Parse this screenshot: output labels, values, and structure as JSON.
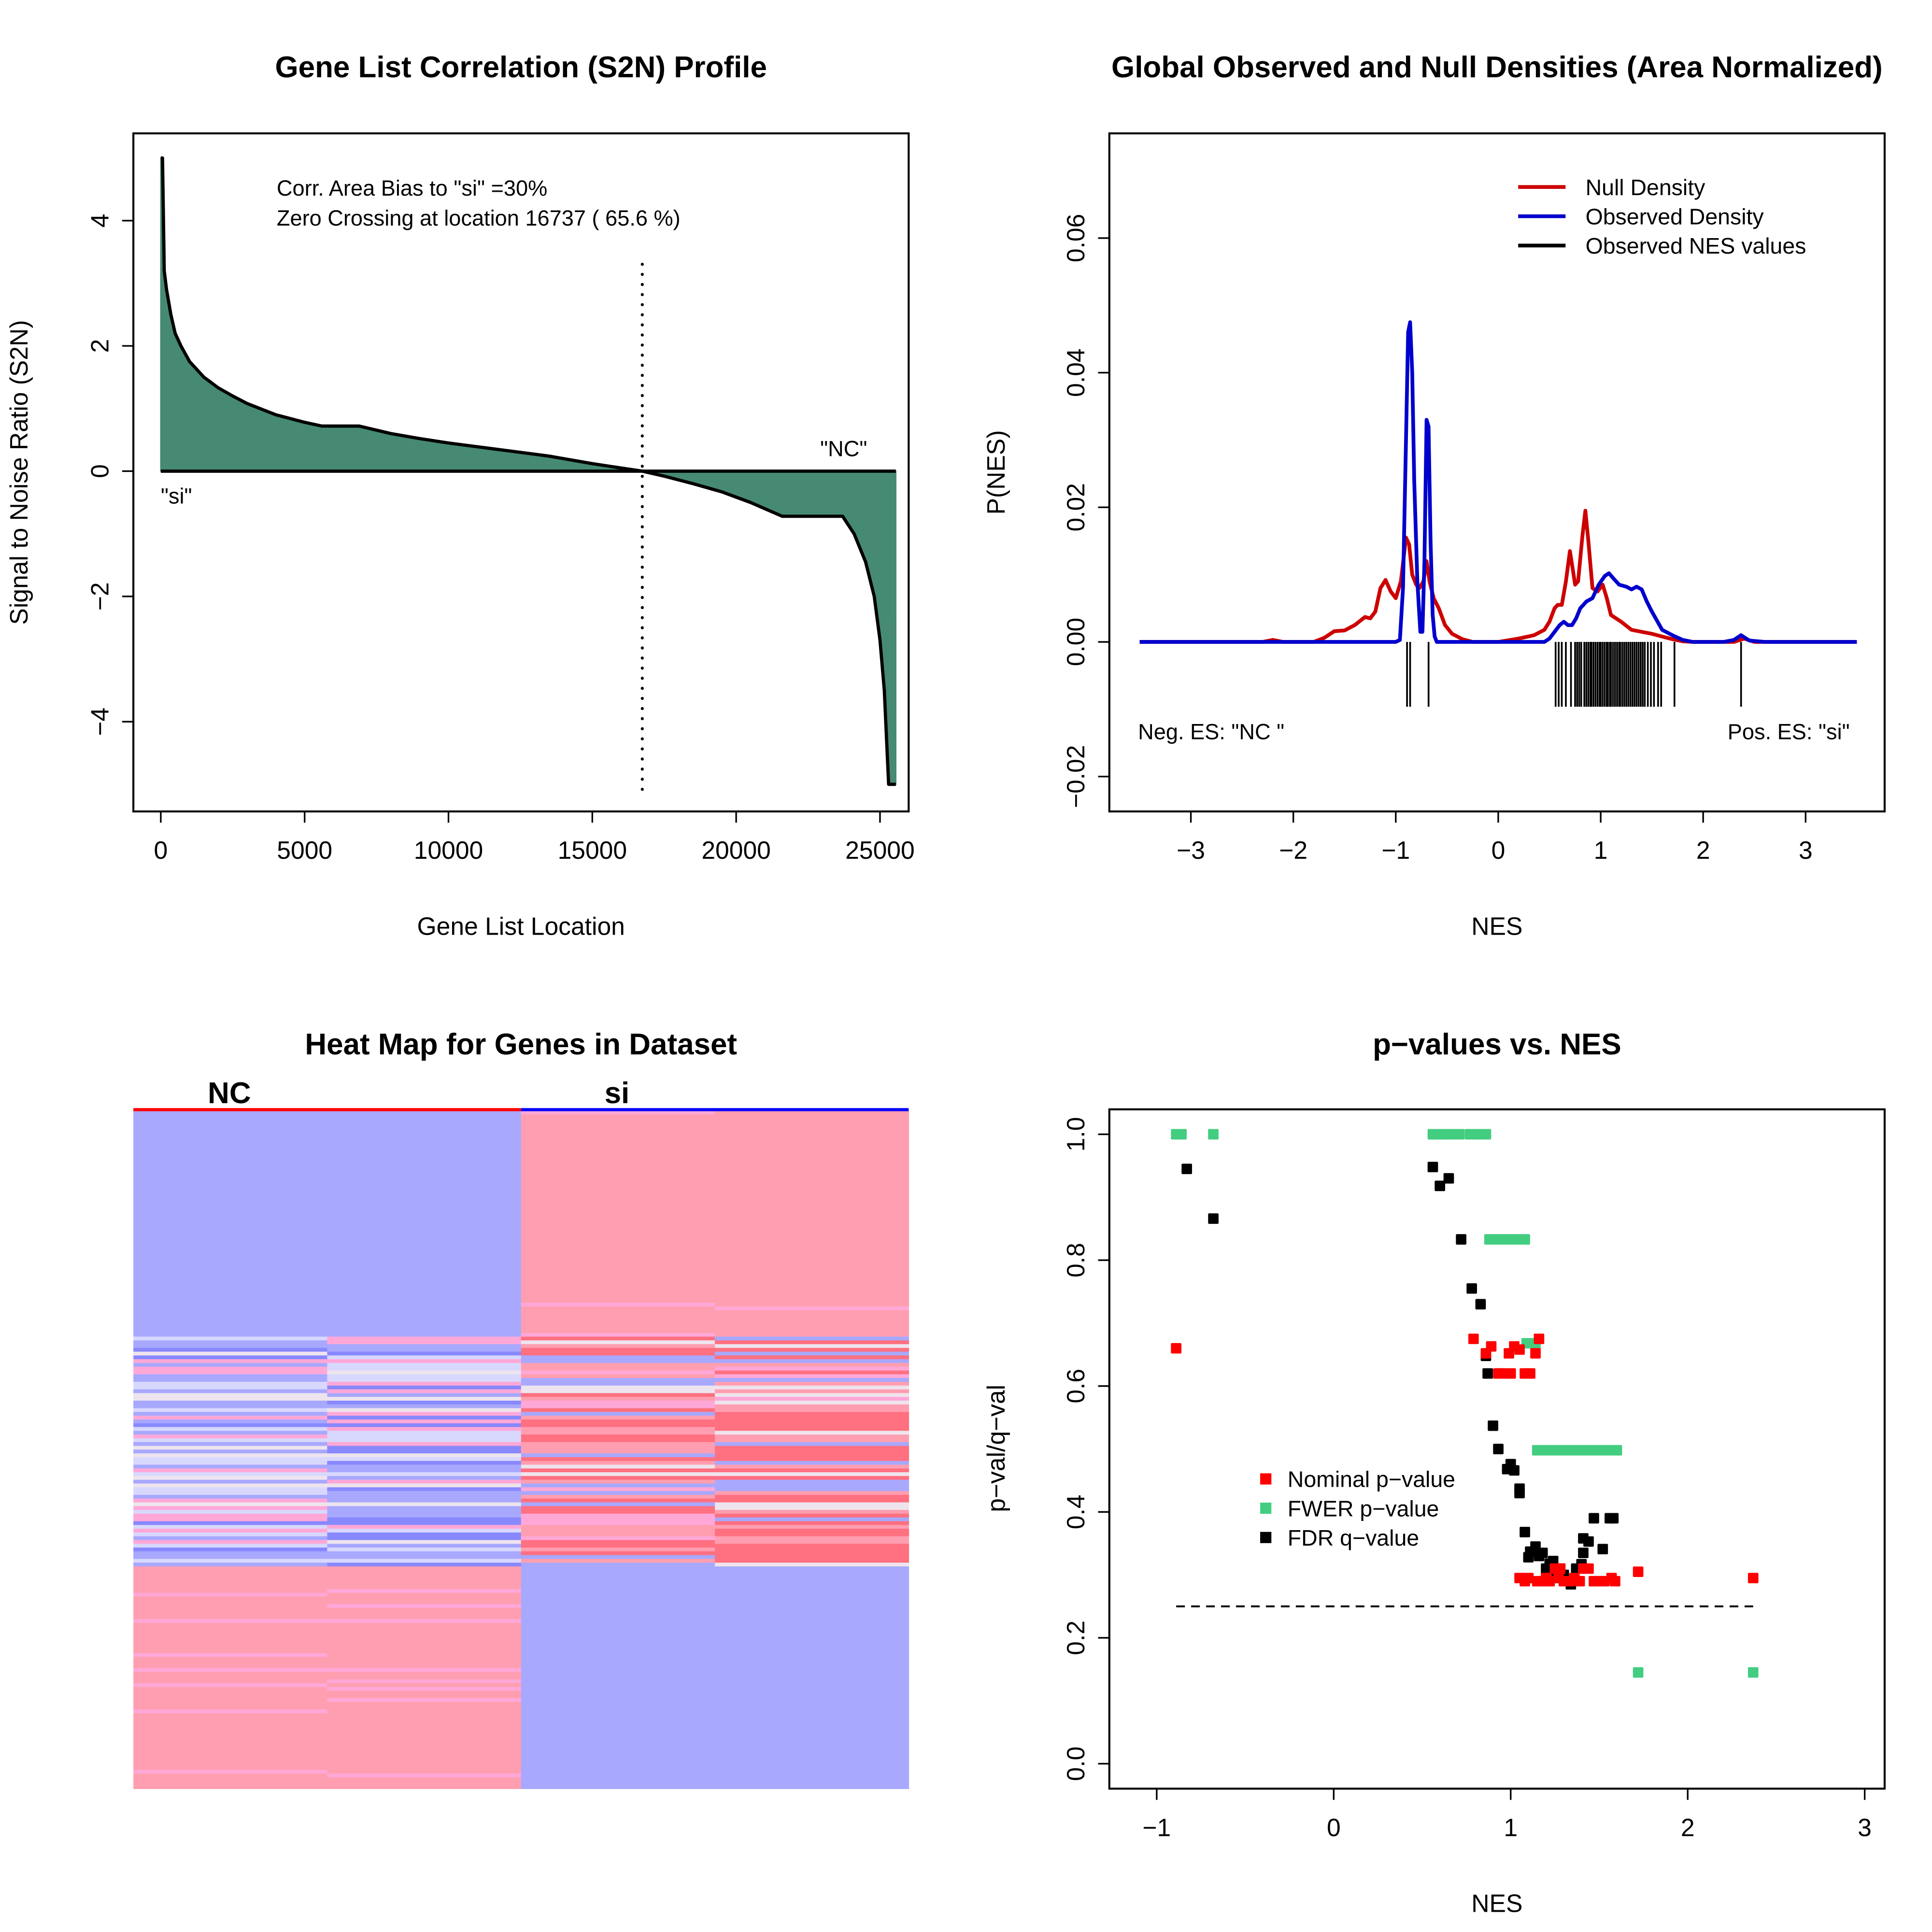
{
  "chart_data": [
    {
      "id": "s2n",
      "type": "area",
      "title": "Gene List Correlation (S2N) Profile",
      "xlabel": "Gene List Location",
      "ylabel": "Signal to Noise Ratio (S2N)",
      "xlim": [
        -1000,
        26500
      ],
      "ylim": [
        -5.4,
        5.3
      ],
      "x_ticks": [
        0,
        5000,
        10000,
        15000,
        20000,
        25000
      ],
      "y_ticks": [
        -4,
        -2,
        0,
        2,
        4
      ],
      "y_tick_labels": [
        "−4",
        "−2",
        "0",
        "2",
        "4"
      ],
      "fill_color": "#468A73",
      "line_color": "#000000",
      "annotations": {
        "line1": "Corr. Area Bias to \"si\" =30%",
        "line2": "Zero Crossing at location  16737  ( 65.6  %)",
        "label_si": "\"si\"",
        "label_nc": "\"NC\""
      },
      "zero_crossing": 16737,
      "zero_crossing_pct": 65.6,
      "area_bias_pct": 30,
      "curve": {
        "x": [
          0,
          60,
          120,
          200,
          350,
          500,
          700,
          1000,
          1500,
          2000,
          2500,
          3000,
          4000,
          5000,
          5600,
          6900,
          8000,
          9000,
          10000,
          11000,
          12000,
          13000,
          13500,
          14000,
          15000,
          16000,
          16737,
          17500,
          18500,
          19500,
          20500,
          21000,
          21600,
          22500,
          23700,
          24100,
          24500,
          24800,
          25000,
          25150,
          25250,
          25300,
          25350,
          25550
        ],
        "y": [
          5.0,
          5.0,
          3.2,
          2.9,
          2.5,
          2.2,
          2.0,
          1.75,
          1.5,
          1.33,
          1.2,
          1.08,
          0.9,
          0.78,
          0.72,
          0.72,
          0.6,
          0.52,
          0.45,
          0.39,
          0.33,
          0.27,
          0.24,
          0.2,
          0.12,
          0.05,
          0.0,
          -0.08,
          -0.2,
          -0.33,
          -0.5,
          -0.6,
          -0.72,
          -0.72,
          -0.72,
          -1.0,
          -1.45,
          -2.0,
          -2.7,
          -3.5,
          -4.5,
          -5.0,
          -5.0,
          -5.0
        ]
      }
    },
    {
      "id": "density",
      "type": "line",
      "title": "Global Observed and Null Densities (Area Normalized)",
      "xlabel": "NES",
      "ylabel": "P(NES)",
      "xlim": [
        -3.8,
        3.8
      ],
      "ylim": [
        -0.025,
        0.075
      ],
      "x_ticks": [
        -3,
        -2,
        -1,
        0,
        1,
        2,
        3
      ],
      "x_tick_labels": [
        "−3",
        "−2",
        "−1",
        "0",
        "1",
        "2",
        "3"
      ],
      "y_ticks": [
        -0.02,
        0.0,
        0.02,
        0.04,
        0.06
      ],
      "y_tick_labels": [
        "−0.02",
        "0.00",
        "0.02",
        "0.04",
        "0.06"
      ],
      "legend": [
        {
          "label": "Null Density",
          "color": "#CD0000"
        },
        {
          "label": "Observed Density",
          "color": "#0000CD"
        },
        {
          "label": "Observed NES values",
          "color": "#000000"
        }
      ],
      "annotations": {
        "neg": "Neg. ES: \"NC \"",
        "pos": "Pos. ES: \"si\""
      },
      "series": [
        {
          "name": "Null Density",
          "color": "#CD0000",
          "x": [
            -3.5,
            -2.3,
            -2.2,
            -2.1,
            -1.8,
            -1.7,
            -1.6,
            -1.5,
            -1.4,
            -1.3,
            -1.25,
            -1.2,
            -1.15,
            -1.1,
            -1.05,
            -1.0,
            -0.95,
            -0.9,
            -0.87,
            -0.84,
            -0.8,
            -0.77,
            -0.73,
            -0.7,
            -0.67,
            -0.63,
            -0.58,
            -0.52,
            -0.45,
            -0.35,
            -0.25,
            0.0,
            0.2,
            0.35,
            0.45,
            0.5,
            0.55,
            0.58,
            0.62,
            0.66,
            0.7,
            0.72,
            0.75,
            0.78,
            0.82,
            0.85,
            0.88,
            0.92,
            0.97,
            1.02,
            1.06,
            1.1,
            1.15,
            1.2,
            1.3,
            1.4,
            1.5,
            1.6,
            1.7,
            1.8,
            1.9,
            2.3,
            2.4,
            2.5,
            3.5
          ],
          "y": [
            0.0,
            0.0,
            0.0003,
            0.0,
            0.0,
            0.0006,
            0.0016,
            0.0017,
            0.0025,
            0.0037,
            0.0035,
            0.0045,
            0.008,
            0.0092,
            0.0075,
            0.0065,
            0.009,
            0.0155,
            0.0145,
            0.01,
            0.0085,
            0.008,
            0.009,
            0.012,
            0.009,
            0.0065,
            0.005,
            0.0025,
            0.0012,
            0.0004,
            0.0,
            0.0,
            0.0005,
            0.001,
            0.0018,
            0.003,
            0.005,
            0.0055,
            0.0055,
            0.009,
            0.0135,
            0.0115,
            0.0085,
            0.009,
            0.0155,
            0.0195,
            0.015,
            0.008,
            0.0075,
            0.0085,
            0.0065,
            0.004,
            0.0035,
            0.003,
            0.0018,
            0.0015,
            0.0012,
            0.0008,
            0.0004,
            0.0001,
            0.0,
            0.0,
            0.0005,
            0.0,
            0.0
          ]
        },
        {
          "name": "Observed Density",
          "color": "#0000CD",
          "x": [
            -3.5,
            -1.0,
            -0.96,
            -0.93,
            -0.9,
            -0.88,
            -0.86,
            -0.84,
            -0.82,
            -0.79,
            -0.76,
            -0.74,
            -0.72,
            -0.7,
            -0.68,
            -0.66,
            -0.64,
            -0.62,
            -0.6,
            -0.56,
            0.0,
            0.45,
            0.5,
            0.55,
            0.6,
            0.64,
            0.68,
            0.72,
            0.76,
            0.8,
            0.86,
            0.92,
            0.98,
            1.04,
            1.08,
            1.12,
            1.18,
            1.25,
            1.3,
            1.35,
            1.4,
            1.45,
            1.5,
            1.6,
            1.7,
            1.8,
            1.9,
            2.2,
            2.3,
            2.37,
            2.45,
            2.6,
            3.5
          ],
          "y": [
            0.0,
            0.0,
            0.0003,
            0.008,
            0.03,
            0.046,
            0.0475,
            0.04,
            0.024,
            0.009,
            0.0015,
            0.0015,
            0.012,
            0.033,
            0.032,
            0.015,
            0.004,
            0.0008,
            0.0,
            0.0,
            0.0,
            0.0,
            0.0005,
            0.0015,
            0.0025,
            0.003,
            0.0025,
            0.0025,
            0.0035,
            0.005,
            0.006,
            0.0065,
            0.0085,
            0.0098,
            0.0102,
            0.0095,
            0.0085,
            0.0082,
            0.0078,
            0.0082,
            0.0078,
            0.006,
            0.0045,
            0.0018,
            0.001,
            0.0003,
            0.0,
            0.0,
            0.0003,
            0.001,
            0.0002,
            0.0,
            0.0
          ]
        }
      ],
      "observed_nes_rug": [
        -0.89,
        -0.86,
        -0.68,
        0.56,
        0.59,
        0.62,
        0.66,
        0.71,
        0.75,
        0.77,
        0.79,
        0.81,
        0.84,
        0.86,
        0.88,
        0.9,
        0.91,
        0.93,
        0.95,
        0.97,
        0.99,
        1.0,
        1.02,
        1.04,
        1.06,
        1.07,
        1.09,
        1.1,
        1.12,
        1.14,
        1.16,
        1.18,
        1.19,
        1.21,
        1.23,
        1.25,
        1.27,
        1.29,
        1.31,
        1.33,
        1.35,
        1.37,
        1.39,
        1.41,
        1.43,
        1.46,
        1.49,
        1.52,
        1.56,
        1.59,
        1.72,
        2.37
      ]
    },
    {
      "id": "heatmap",
      "type": "heatmap",
      "title": "Heat Map for Genes in Dataset",
      "column_groups": [
        {
          "label": "NC",
          "bar_color": "#FF0000",
          "columns": 2
        },
        {
          "label": "si",
          "bar_color": "#0000FF",
          "columns": 2
        }
      ],
      "palette": {
        "deep_blue": "#8888FF",
        "blue": "#A8A8FF",
        "light_blue": "#D8D8FF",
        "neutral": "#EEE4EE",
        "light_pink": "#FFA8D8",
        "pink": "#FF9EB0",
        "red": "#FF7080"
      },
      "blocks": [
        {
          "rows_from": 0.0,
          "rows_to": 0.33,
          "cols": [
            "blue",
            "blue",
            "pink",
            "pink"
          ]
        },
        {
          "rows_from": 0.33,
          "rows_to": 0.67,
          "cols": [
            "mixed-blue",
            "mixed-blue",
            "mixed-red",
            "mixed-red"
          ]
        },
        {
          "rows_from": 0.67,
          "rows_to": 1.0,
          "cols": [
            "pink",
            "pink",
            "blue",
            "blue"
          ]
        }
      ]
    },
    {
      "id": "pvalues",
      "type": "scatter",
      "title": "p−values vs. NES",
      "xlabel": "NES",
      "ylabel": "p−val/q−val",
      "xlim": [
        -1.28,
        3.1
      ],
      "ylim": [
        -0.04,
        1.04
      ],
      "x_ticks": [
        -1,
        0,
        1,
        2,
        3
      ],
      "x_tick_labels": [
        "−1",
        "0",
        "1",
        "2",
        "3"
      ],
      "y_ticks": [
        0.0,
        0.2,
        0.4,
        0.6,
        0.8,
        1.0
      ],
      "y_tick_labels": [
        "0.0",
        "0.2",
        "0.4",
        "0.6",
        "0.8",
        "1.0"
      ],
      "threshold_line": {
        "y": 0.25,
        "x_from": -0.89,
        "x_to": 2.37,
        "style": "dashed"
      },
      "legend": [
        {
          "label": "Nominal p−value",
          "color": "#FF0000"
        },
        {
          "label": "FWER p−value",
          "color": "#43CD80"
        },
        {
          "label": "FDR q−value",
          "color": "#000000"
        }
      ],
      "series": [
        {
          "name": "Nominal p-value",
          "color": "#FF0000",
          "points": [
            [
              -0.89,
              0.66
            ],
            [
              0.79,
              0.675
            ],
            [
              0.86,
              0.652
            ],
            [
              0.89,
              0.663
            ],
            [
              0.93,
              0.62
            ],
            [
              0.95,
              0.62
            ],
            [
              0.99,
              0.652
            ],
            [
              1.0,
              0.62
            ],
            [
              1.02,
              0.663
            ],
            [
              1.05,
              0.658
            ],
            [
              1.08,
              0.62
            ],
            [
              1.11,
              0.62
            ],
            [
              1.14,
              0.652
            ],
            [
              1.16,
              0.675
            ],
            [
              1.05,
              0.295
            ],
            [
              1.08,
              0.29
            ],
            [
              1.1,
              0.295
            ],
            [
              1.15,
              0.29
            ],
            [
              1.18,
              0.29
            ],
            [
              1.2,
              0.295
            ],
            [
              1.22,
              0.29
            ],
            [
              1.25,
              0.31
            ],
            [
              1.27,
              0.295
            ],
            [
              1.28,
              0.31
            ],
            [
              1.3,
              0.29
            ],
            [
              1.33,
              0.29
            ],
            [
              1.36,
              0.295
            ],
            [
              1.39,
              0.29
            ],
            [
              1.41,
              0.31
            ],
            [
              1.44,
              0.31
            ],
            [
              1.47,
              0.29
            ],
            [
              1.5,
              0.29
            ],
            [
              1.53,
              0.29
            ],
            [
              1.57,
              0.295
            ],
            [
              1.59,
              0.29
            ],
            [
              1.72,
              0.305
            ],
            [
              2.37,
              0.295
            ]
          ]
        },
        {
          "name": "FWER p-value",
          "color": "#43CD80",
          "points": [
            [
              -0.89,
              1.0
            ],
            [
              -0.86,
              1.0
            ],
            [
              -0.68,
              1.0
            ],
            [
              0.56,
              1.0
            ],
            [
              0.59,
              1.0
            ],
            [
              0.62,
              1.0
            ],
            [
              0.66,
              1.0
            ],
            [
              0.71,
              1.0
            ],
            [
              0.77,
              1.0
            ],
            [
              0.81,
              1.0
            ],
            [
              0.86,
              1.0
            ],
            [
              0.88,
              0.833
            ],
            [
              0.92,
              0.833
            ],
            [
              0.96,
              0.833
            ],
            [
              1.0,
              0.833
            ],
            [
              1.04,
              0.833
            ],
            [
              1.08,
              0.833
            ],
            [
              1.09,
              0.668
            ],
            [
              1.14,
              0.668
            ],
            [
              1.15,
              0.498
            ],
            [
              1.2,
              0.498
            ],
            [
              1.25,
              0.498
            ],
            [
              1.3,
              0.498
            ],
            [
              1.35,
              0.498
            ],
            [
              1.4,
              0.498
            ],
            [
              1.45,
              0.498
            ],
            [
              1.5,
              0.498
            ],
            [
              1.55,
              0.498
            ],
            [
              1.6,
              0.498
            ],
            [
              1.72,
              0.145
            ],
            [
              2.37,
              0.145
            ]
          ]
        },
        {
          "name": "FDR q-value",
          "color": "#000000",
          "points": [
            [
              -0.83,
              0.945
            ],
            [
              -0.68,
              0.866
            ],
            [
              0.56,
              0.948
            ],
            [
              0.6,
              0.918
            ],
            [
              0.65,
              0.93
            ],
            [
              0.72,
              0.833
            ],
            [
              0.78,
              0.755
            ],
            [
              0.83,
              0.73
            ],
            [
              0.86,
              0.648
            ],
            [
              0.87,
              0.62
            ],
            [
              0.9,
              0.537
            ],
            [
              0.93,
              0.5
            ],
            [
              0.98,
              0.468
            ],
            [
              1.0,
              0.476
            ],
            [
              1.02,
              0.466
            ],
            [
              1.05,
              0.437
            ],
            [
              1.05,
              0.43
            ],
            [
              1.08,
              0.368
            ],
            [
              1.1,
              0.328
            ],
            [
              1.11,
              0.337
            ],
            [
              1.14,
              0.345
            ],
            [
              1.16,
              0.33
            ],
            [
              1.18,
              0.335
            ],
            [
              1.2,
              0.31
            ],
            [
              1.22,
              0.318
            ],
            [
              1.24,
              0.322
            ],
            [
              1.26,
              0.305
            ],
            [
              1.28,
              0.31
            ],
            [
              1.3,
              0.3
            ],
            [
              1.34,
              0.285
            ],
            [
              1.37,
              0.31
            ],
            [
              1.4,
              0.317
            ],
            [
              1.41,
              0.335
            ],
            [
              1.41,
              0.358
            ],
            [
              1.44,
              0.353
            ],
            [
              1.47,
              0.39
            ],
            [
              1.52,
              0.341
            ],
            [
              1.56,
              0.39
            ],
            [
              1.58,
              0.39
            ]
          ]
        }
      ]
    }
  ]
}
